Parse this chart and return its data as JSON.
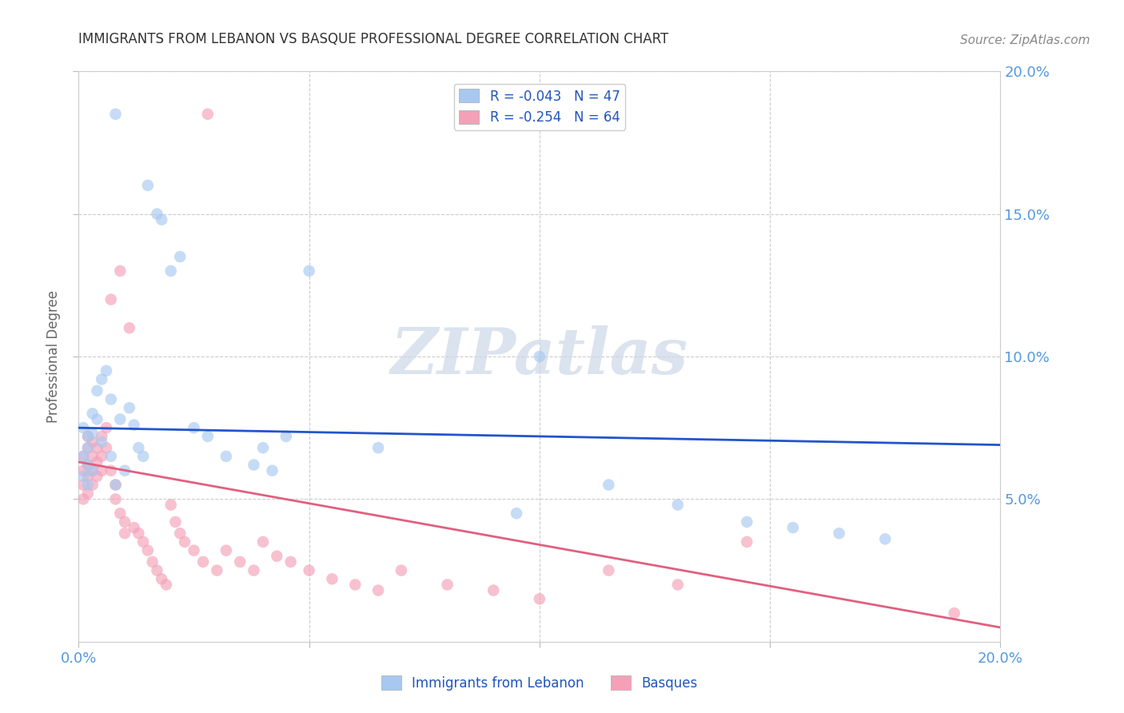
{
  "title": "IMMIGRANTS FROM LEBANON VS BASQUE PROFESSIONAL DEGREE CORRELATION CHART",
  "source": "Source: ZipAtlas.com",
  "ylabel_label": "Professional Degree",
  "xlim": [
    0.0,
    0.2
  ],
  "ylim": [
    0.0,
    0.2
  ],
  "blue_color": "#a8c8f0",
  "pink_color": "#f4a0b8",
  "blue_line_color": "#2255cc",
  "pink_line_color": "#e06080",
  "background_color": "#ffffff",
  "grid_color": "#cccccc",
  "axis_tick_color": "#5599dd",
  "watermark_color": "#ccd8e8",
  "blue_line_x": [
    0.0,
    0.2
  ],
  "blue_line_y": [
    0.075,
    0.069
  ],
  "pink_line_x": [
    0.0,
    0.2
  ],
  "pink_line_y": [
    0.063,
    0.005
  ],
  "blue_x": [
    0.001,
    0.001,
    0.001,
    0.002,
    0.002,
    0.002,
    0.002,
    0.003,
    0.003,
    0.003,
    0.004,
    0.004,
    0.005,
    0.005,
    0.006,
    0.007,
    0.007,
    0.008,
    0.009,
    0.01,
    0.011,
    0.012,
    0.013,
    0.014,
    0.015,
    0.017,
    0.018,
    0.02,
    0.022,
    0.025,
    0.028,
    0.032,
    0.038,
    0.04,
    0.042,
    0.045,
    0.05,
    0.065,
    0.095,
    0.1,
    0.115,
    0.13,
    0.145,
    0.155,
    0.165,
    0.175,
    0.008
  ],
  "blue_y": [
    0.075,
    0.065,
    0.058,
    0.072,
    0.068,
    0.062,
    0.055,
    0.08,
    0.073,
    0.06,
    0.088,
    0.078,
    0.092,
    0.07,
    0.095,
    0.085,
    0.065,
    0.185,
    0.078,
    0.06,
    0.082,
    0.076,
    0.068,
    0.065,
    0.16,
    0.15,
    0.148,
    0.13,
    0.135,
    0.075,
    0.072,
    0.065,
    0.062,
    0.068,
    0.06,
    0.072,
    0.13,
    0.068,
    0.045,
    0.1,
    0.055,
    0.048,
    0.042,
    0.04,
    0.038,
    0.036,
    0.055
  ],
  "pink_x": [
    0.001,
    0.001,
    0.001,
    0.001,
    0.002,
    0.002,
    0.002,
    0.002,
    0.002,
    0.003,
    0.003,
    0.003,
    0.003,
    0.004,
    0.004,
    0.004,
    0.005,
    0.005,
    0.005,
    0.006,
    0.006,
    0.007,
    0.007,
    0.008,
    0.008,
    0.009,
    0.009,
    0.01,
    0.01,
    0.011,
    0.012,
    0.013,
    0.014,
    0.015,
    0.016,
    0.017,
    0.018,
    0.019,
    0.02,
    0.021,
    0.022,
    0.023,
    0.025,
    0.027,
    0.028,
    0.03,
    0.032,
    0.035,
    0.038,
    0.04,
    0.043,
    0.046,
    0.05,
    0.055,
    0.06,
    0.065,
    0.07,
    0.08,
    0.09,
    0.1,
    0.115,
    0.13,
    0.145,
    0.19
  ],
  "pink_y": [
    0.065,
    0.06,
    0.055,
    0.05,
    0.072,
    0.068,
    0.062,
    0.058,
    0.052,
    0.07,
    0.065,
    0.06,
    0.055,
    0.068,
    0.063,
    0.058,
    0.072,
    0.065,
    0.06,
    0.075,
    0.068,
    0.12,
    0.06,
    0.055,
    0.05,
    0.13,
    0.045,
    0.042,
    0.038,
    0.11,
    0.04,
    0.038,
    0.035,
    0.032,
    0.028,
    0.025,
    0.022,
    0.02,
    0.048,
    0.042,
    0.038,
    0.035,
    0.032,
    0.028,
    0.185,
    0.025,
    0.032,
    0.028,
    0.025,
    0.035,
    0.03,
    0.028,
    0.025,
    0.022,
    0.02,
    0.018,
    0.025,
    0.02,
    0.018,
    0.015,
    0.025,
    0.02,
    0.035,
    0.01
  ]
}
